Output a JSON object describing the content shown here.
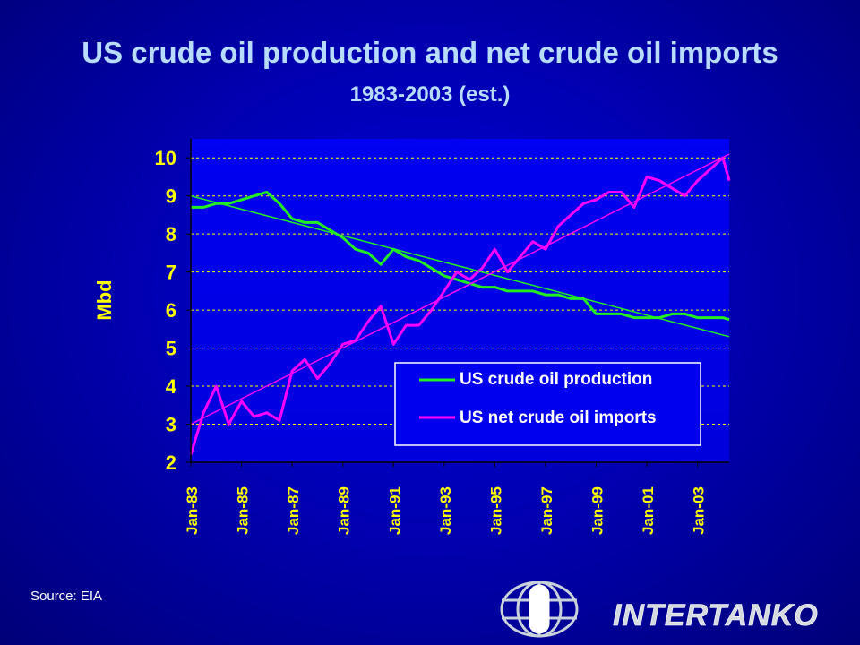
{
  "header": {
    "title": "US crude oil production and net crude oil imports",
    "subtitle": "1983-2003 (est.)"
  },
  "footer": {
    "source": "Source: EIA",
    "logo_text": "INTERTANKO"
  },
  "colors": {
    "production": "#22ee22",
    "imports": "#ff00ff",
    "axis_text": "#ffff00",
    "plot_bg": "#0000ee",
    "grid": "#ffff00"
  },
  "chart_data": {
    "type": "line",
    "title": "US crude oil production and net crude oil imports",
    "subtitle": "1983-2003 (est.)",
    "xlabel": "",
    "ylabel": "Mbd",
    "ylim": [
      2,
      10.5
    ],
    "xlim": [
      "1983-01",
      "2004-04"
    ],
    "y_ticks": [
      2,
      3,
      4,
      5,
      6,
      7,
      8,
      9,
      10
    ],
    "x_ticks": [
      "Jan-83",
      "Jan-85",
      "Jan-87",
      "Jan-89",
      "Jan-91",
      "Jan-93",
      "Jan-95",
      "Jan-97",
      "Jan-99",
      "Jan-01",
      "Jan-03"
    ],
    "grid": "horizontal dashed",
    "legend": "lower-right",
    "x": [
      "1983-01",
      "1983-07",
      "1984-01",
      "1984-07",
      "1985-01",
      "1985-07",
      "1986-01",
      "1986-07",
      "1987-01",
      "1987-07",
      "1988-01",
      "1988-07",
      "1989-01",
      "1989-07",
      "1990-01",
      "1990-07",
      "1991-01",
      "1991-07",
      "1992-01",
      "1992-07",
      "1993-01",
      "1993-07",
      "1994-01",
      "1994-07",
      "1995-01",
      "1995-07",
      "1996-01",
      "1996-07",
      "1997-01",
      "1997-07",
      "1998-01",
      "1998-07",
      "1999-01",
      "1999-07",
      "2000-01",
      "2000-07",
      "2001-01",
      "2001-07",
      "2002-01",
      "2002-07",
      "2003-01",
      "2003-07",
      "2004-01",
      "2004-04"
    ],
    "series": [
      {
        "name": "US crude oil production",
        "color": "#22ee22",
        "values": [
          8.7,
          8.7,
          8.8,
          8.8,
          8.9,
          9.0,
          9.1,
          8.8,
          8.4,
          8.3,
          8.3,
          8.1,
          7.9,
          7.6,
          7.5,
          7.2,
          7.6,
          7.4,
          7.3,
          7.1,
          6.9,
          6.8,
          6.7,
          6.6,
          6.6,
          6.5,
          6.5,
          6.5,
          6.4,
          6.4,
          6.3,
          6.3,
          5.9,
          5.9,
          5.9,
          5.8,
          5.8,
          5.8,
          5.9,
          5.9,
          5.8,
          5.8,
          5.8,
          5.75
        ]
      },
      {
        "name": "US net crude oil imports",
        "color": "#ff00ff",
        "values": [
          2.2,
          3.3,
          4.0,
          3.0,
          3.6,
          3.2,
          3.3,
          3.1,
          4.4,
          4.7,
          4.2,
          4.6,
          5.1,
          5.2,
          5.7,
          6.1,
          5.1,
          5.6,
          5.6,
          6.0,
          6.5,
          7.0,
          6.8,
          7.1,
          7.6,
          7.0,
          7.4,
          7.8,
          7.6,
          8.2,
          8.5,
          8.8,
          8.9,
          9.1,
          9.1,
          8.7,
          9.5,
          9.4,
          9.2,
          9.0,
          9.4,
          9.7,
          10.0,
          9.4
        ]
      },
      {
        "name": "",
        "type": "trend",
        "color": "#22ee22",
        "x": [
          "1983-01",
          "2004-04"
        ],
        "values": [
          9.0,
          5.3
        ]
      },
      {
        "name": "",
        "type": "trend",
        "color": "#ff00ff",
        "x": [
          "1983-01",
          "2004-04"
        ],
        "values": [
          3.0,
          10.1
        ]
      }
    ]
  }
}
